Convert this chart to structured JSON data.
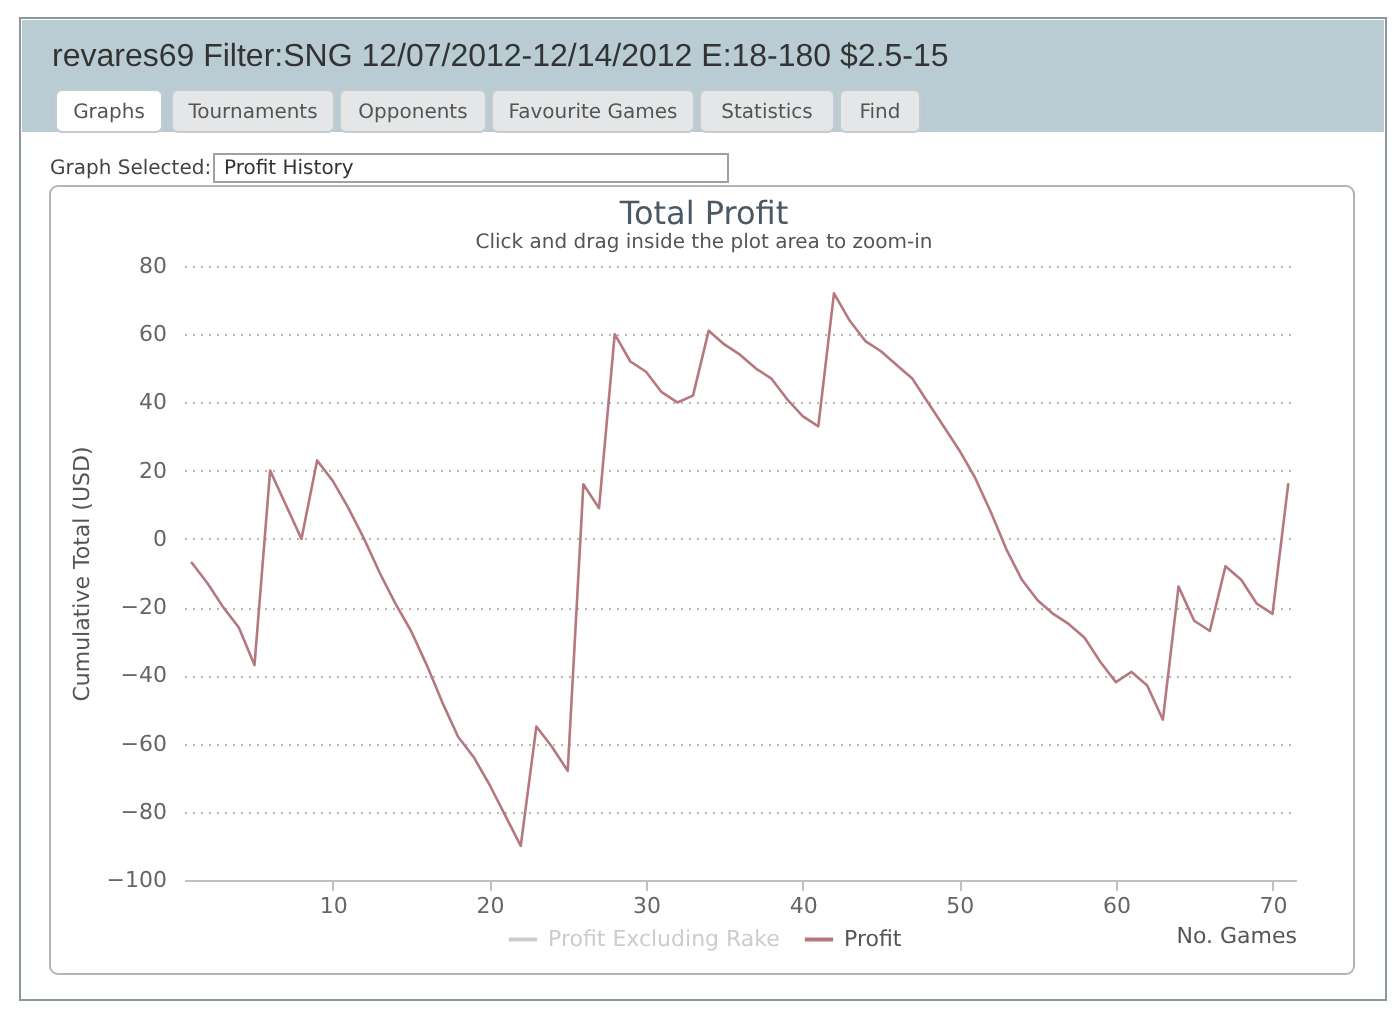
{
  "chart_data": {
    "type": "line",
    "title": "Total Profit",
    "subtitle": "Click and drag inside the plot area to zoom-in",
    "xlabel": "No. Games",
    "ylabel": "Cumulative Total (USD)",
    "annotations": [
      "revares69 Filter:SNG 12/07/2012-12/14/2012 E:18-180 $2.5-15",
      "Graphs",
      "Tournaments",
      "Opponents",
      "Favourite Games",
      "Statistics",
      "Find",
      "Graph Selected:",
      "Profit History"
    ],
    "x": [
      1,
      2,
      3,
      4,
      5,
      6,
      7,
      8,
      9,
      10,
      11,
      12,
      13,
      14,
      15,
      16,
      17,
      18,
      19,
      20,
      21,
      22,
      23,
      24,
      25,
      26,
      27,
      28,
      29,
      30,
      31,
      32,
      33,
      34,
      35,
      36,
      37,
      38,
      39,
      40,
      41,
      42,
      43,
      44,
      45,
      46,
      47,
      48,
      49,
      50,
      51,
      52,
      53,
      54,
      55,
      56,
      57,
      58,
      59,
      60,
      61,
      62,
      63,
      64,
      65,
      66,
      67,
      68,
      69,
      70,
      71
    ],
    "series": [
      {
        "name": "Profit Excluding Rake",
        "color": "#cccccc",
        "values": [
          null,
          null,
          null,
          null,
          null,
          null,
          null,
          null,
          null,
          null,
          null,
          null,
          null,
          null,
          null,
          null,
          null,
          null,
          null,
          null,
          null,
          null,
          null,
          null,
          null,
          null,
          null,
          null,
          null,
          null,
          null,
          null,
          null,
          null,
          null,
          null,
          null,
          null,
          null,
          null,
          null,
          null,
          null,
          null,
          null,
          null,
          null,
          null,
          null,
          null,
          null,
          null,
          null,
          null,
          null,
          null,
          null,
          null,
          null,
          null,
          null,
          null,
          null,
          null,
          null,
          null,
          null,
          null,
          null,
          null,
          null
        ]
      },
      {
        "name": "Profit",
        "color": "#b5787e",
        "values": [
          -7,
          -13,
          -20,
          -26,
          -37,
          20,
          10,
          0,
          23,
          17,
          9,
          0,
          -10,
          -19,
          -27,
          -37,
          -48,
          -58,
          -64,
          -72,
          -81,
          -90,
          -55,
          -61,
          -68,
          16,
          9,
          60,
          52,
          49,
          43,
          40,
          42,
          61,
          57,
          54,
          50,
          47,
          41,
          36,
          33,
          72,
          64,
          58,
          55,
          51,
          47,
          40,
          33,
          26,
          18,
          8,
          -3,
          -12,
          -18,
          -22,
          -25,
          -29,
          -36,
          -42,
          -39,
          -43,
          -53,
          -14,
          -24,
          -27,
          -8,
          -12,
          -19,
          -22,
          16
        ]
      }
    ],
    "xlim": [
      0.5,
      71.5
    ],
    "xticks": [
      10,
      20,
      30,
      40,
      50,
      60,
      70
    ],
    "ylim": [
      -100,
      80
    ],
    "yticks": [
      -100,
      -80,
      -60,
      -40,
      -20,
      0,
      20,
      40,
      60,
      80
    ],
    "grid": "y",
    "legend": "bottom"
  }
}
